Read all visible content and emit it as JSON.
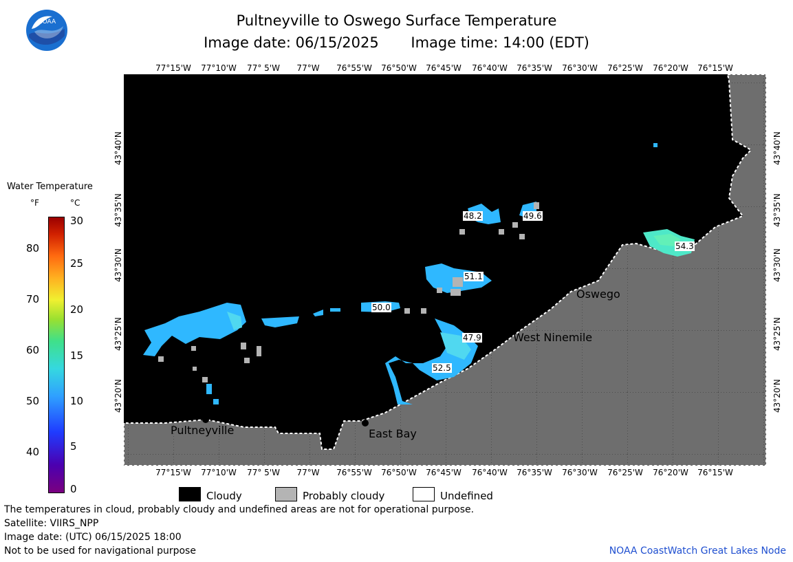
{
  "header": {
    "title": "Pultneyville to Oswego Surface Temperature",
    "image_date": "Image date: 06/15/2025",
    "image_time": "Image time: 14:00 (EDT)"
  },
  "logo": {
    "text": "NOAA"
  },
  "map": {
    "lon_ticks_top": [
      "77°15'W",
      "77°10'W",
      "77° 5'W",
      "77°W",
      "76°55'W",
      "76°50'W",
      "76°45'W",
      "76°40'W",
      "76°35'W",
      "76°30'W",
      "76°25'W",
      "76°20'W",
      "76°15'W"
    ],
    "lon_ticks_bottom": [
      "77°15'W",
      "77°10'W",
      "77° 5'W",
      "77°W",
      "76°55'W",
      "76°50'W",
      "76°45'W",
      "76°40'W",
      "76°35'W",
      "76°30'W",
      "76°25'W",
      "76°20'W",
      "76°15'W"
    ],
    "lat_ticks": [
      "43°40'N",
      "43°35'N",
      "43°30'N",
      "43°25'N",
      "43°20'N"
    ],
    "places": {
      "oswego": "Oswego",
      "west_ninemile": "West Ninemile",
      "pultneyville": "Pultneyville",
      "east_bay": "East Bay"
    },
    "temp_labels": [
      "48.2",
      "49.6",
      "54.3",
      "51.1",
      "50.0",
      "47.9",
      "52.5"
    ]
  },
  "legend": {
    "title": "Water Temperature",
    "unit_f": "°F",
    "unit_c": "°C",
    "f_labels": [
      "80",
      "70",
      "60",
      "50",
      "40"
    ],
    "c_labels": [
      "30",
      "25",
      "20",
      "15",
      "10",
      "5",
      "0"
    ],
    "key": {
      "cloudy": "Cloudy",
      "probably_cloudy": "Probably cloudy",
      "undefined": "Undefined"
    }
  },
  "footer": {
    "line1": "The temperatures in cloud, probably cloudy and undefined areas are not for operational purpose.",
    "line2": "Satellite: VIIRS_NPP",
    "line3": "Image date: (UTC) 06/15/2025  18:00",
    "line4": "Not to be used for navigational purpose",
    "node": "NOAA CoastWatch Great Lakes Node"
  },
  "colors": {
    "land": "#6e6e6e",
    "cloud": "#000000",
    "probably_cloudy": "#b4b4b4",
    "water_cool": "#2fb8ff",
    "water_warm": "#50e0c0",
    "node_link": "#1f4fd0"
  }
}
